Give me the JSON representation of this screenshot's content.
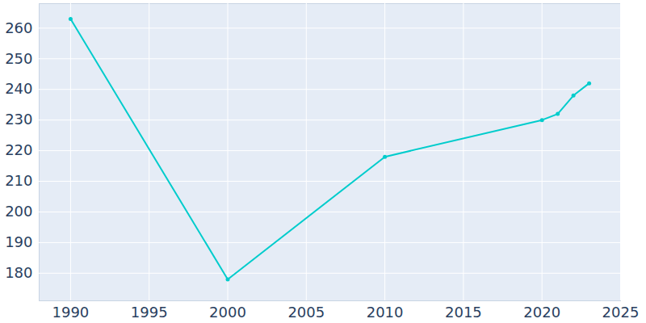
{
  "chart_data": {
    "type": "line",
    "x": [
      1990,
      2000,
      2010,
      2020,
      2021,
      2022,
      2023
    ],
    "values": [
      263,
      178,
      218,
      230,
      232,
      238,
      242
    ],
    "color": "#00cccc",
    "marker": "dot",
    "xlim": [
      1988,
      2025
    ],
    "xticks": [
      1990,
      1995,
      2000,
      2005,
      2010,
      2015,
      2020,
      2025
    ],
    "ylim": [
      171,
      268
    ],
    "yticks": [
      180,
      190,
      200,
      210,
      220,
      230,
      240,
      250,
      260
    ],
    "grid": true
  }
}
